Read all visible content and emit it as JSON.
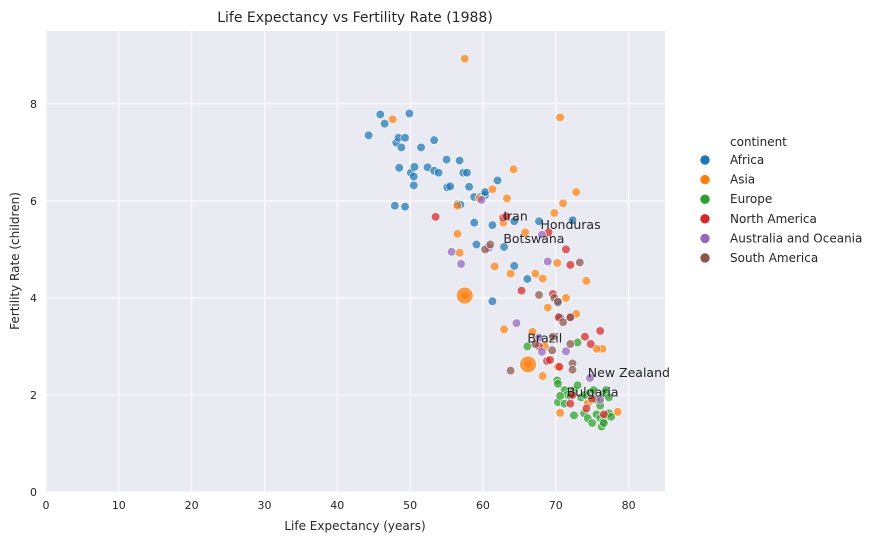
{
  "chart_data": {
    "type": "scatter",
    "title": "Life Expectancy vs Fertility Rate (1988)",
    "xlabel": "Life Expectancy (years)",
    "ylabel": "Fertility Rate (children)",
    "xlim": [
      0,
      85
    ],
    "ylim": [
      0,
      9.5
    ],
    "xticks": [
      0,
      10,
      20,
      30,
      40,
      50,
      60,
      70,
      80
    ],
    "yticks": [
      0,
      2,
      4,
      6,
      8
    ],
    "grid": true,
    "legend": {
      "title": "continent",
      "placement": "right",
      "entries": [
        {
          "name": "Africa",
          "color": "#1f77b4"
        },
        {
          "name": "Asia",
          "color": "#ff7f0e"
        },
        {
          "name": "Europe",
          "color": "#2ca02c"
        },
        {
          "name": "North America",
          "color": "#d62728"
        },
        {
          "name": "Australia and Oceania",
          "color": "#9467bd"
        },
        {
          "name": "South America",
          "color": "#8c564b"
        }
      ]
    },
    "series": [
      {
        "name": "Africa",
        "color": "#1f77b4",
        "points": [
          [
            44.3,
            7.35
          ],
          [
            45.9,
            7.78
          ],
          [
            46.5,
            7.59
          ],
          [
            48.1,
            7.2
          ],
          [
            48.4,
            7.3
          ],
          [
            48.8,
            7.1
          ],
          [
            49.3,
            7.3
          ],
          [
            49.9,
            7.8
          ],
          [
            51.5,
            7.1
          ],
          [
            53.3,
            7.25
          ],
          [
            48.5,
            6.68
          ],
          [
            50.1,
            6.58
          ],
          [
            50.6,
            6.7
          ],
          [
            52.4,
            6.69
          ],
          [
            53.3,
            6.62
          ],
          [
            53.9,
            6.58
          ],
          [
            55.0,
            6.85
          ],
          [
            56.8,
            6.83
          ],
          [
            57.3,
            6.58
          ],
          [
            57.8,
            6.58
          ],
          [
            50.5,
            6.5
          ],
          [
            50.5,
            6.32
          ],
          [
            55.1,
            6.28
          ],
          [
            55.5,
            6.3
          ],
          [
            58.1,
            6.29
          ],
          [
            58.8,
            6.08
          ],
          [
            59.6,
            6.08
          ],
          [
            60.3,
            6.12
          ],
          [
            60.3,
            6.18
          ],
          [
            62.0,
            6.42
          ],
          [
            47.9,
            5.9
          ],
          [
            49.3,
            5.88
          ],
          [
            56.5,
            5.93
          ],
          [
            56.9,
            5.92
          ],
          [
            58.8,
            5.55
          ],
          [
            61.3,
            5.5
          ],
          [
            64.3,
            5.58
          ],
          [
            67.7,
            5.58
          ],
          [
            72.3,
            5.6
          ],
          [
            59.1,
            5.1
          ],
          [
            62.9,
            5.05
          ],
          [
            64.3,
            4.66
          ],
          [
            66.1,
            4.39
          ],
          [
            61.3,
            3.93
          ],
          [
            70.3,
            3.9
          ],
          [
            70.6,
            3.6
          ]
        ]
      },
      {
        "name": "Asia",
        "color": "#ff7f0e",
        "points": [
          [
            57.5,
            8.93
          ],
          [
            47.6,
            7.68
          ],
          [
            70.6,
            7.72
          ],
          [
            64.2,
            6.65
          ],
          [
            72.8,
            6.18
          ],
          [
            61.3,
            6.24
          ],
          [
            63.3,
            6.05
          ],
          [
            71.0,
            5.95
          ],
          [
            56.5,
            5.9
          ],
          [
            59.5,
            6.05
          ],
          [
            69.8,
            5.75
          ],
          [
            62.8,
            5.55
          ],
          [
            65.8,
            5.35
          ],
          [
            56.5,
            5.32
          ],
          [
            56.8,
            4.93
          ],
          [
            61.6,
            4.65
          ],
          [
            63.8,
            4.5
          ],
          [
            67.2,
            4.5
          ],
          [
            68.2,
            4.4
          ],
          [
            70.2,
            4.72
          ],
          [
            74.2,
            4.35
          ],
          [
            71.4,
            4.0
          ],
          [
            68.9,
            3.8
          ],
          [
            57.5,
            4.05
          ],
          [
            72.8,
            3.67
          ],
          [
            62.9,
            3.35
          ],
          [
            66.8,
            3.3
          ],
          [
            68.5,
            3.0
          ],
          [
            76.4,
            2.95
          ],
          [
            66.2,
            2.63
          ],
          [
            68.2,
            2.39
          ],
          [
            70.3,
            2.58
          ],
          [
            75.6,
            2.95
          ],
          [
            78.5,
            1.65
          ],
          [
            70.6,
            1.63
          ],
          [
            74.4,
            1.83
          ],
          [
            76.0,
            1.88
          ]
        ]
      },
      {
        "name": "Europe",
        "color": "#2ca02c",
        "points": [
          [
            66.1,
            3.0
          ],
          [
            70.2,
            2.3
          ],
          [
            70.3,
            2.23
          ],
          [
            71.2,
            2.1
          ],
          [
            71.6,
            2.0
          ],
          [
            72.0,
            1.98
          ],
          [
            72.5,
            2.1
          ],
          [
            73.0,
            2.2
          ],
          [
            73.5,
            1.95
          ],
          [
            74.0,
            2.0
          ],
          [
            74.7,
            2.05
          ],
          [
            75.2,
            2.1
          ],
          [
            75.6,
            1.9
          ],
          [
            76.1,
            1.78
          ],
          [
            76.5,
            2.02
          ],
          [
            76.9,
            2.1
          ],
          [
            77.3,
            1.95
          ],
          [
            70.3,
            1.85
          ],
          [
            71.2,
            1.82
          ],
          [
            72.5,
            1.58
          ],
          [
            73.9,
            1.62
          ],
          [
            74.4,
            1.52
          ],
          [
            75.0,
            1.42
          ],
          [
            75.6,
            1.6
          ],
          [
            76.1,
            1.52
          ],
          [
            76.5,
            1.45
          ],
          [
            76.9,
            1.58
          ],
          [
            77.3,
            1.62
          ],
          [
            77.6,
            1.55
          ],
          [
            76.3,
            1.35
          ],
          [
            76.6,
            1.42
          ],
          [
            70.6,
            1.98
          ],
          [
            73.0,
            3.08
          ]
        ]
      },
      {
        "name": "North America",
        "color": "#d62728",
        "points": [
          [
            53.5,
            5.67
          ],
          [
            62.8,
            5.65
          ],
          [
            63.2,
            5.68
          ],
          [
            69.0,
            5.35
          ],
          [
            71.4,
            5.0
          ],
          [
            72.0,
            4.68
          ],
          [
            65.3,
            4.15
          ],
          [
            69.6,
            4.08
          ],
          [
            70.4,
            3.6
          ],
          [
            72.0,
            3.6
          ],
          [
            76.1,
            3.32
          ],
          [
            74.0,
            3.2
          ],
          [
            74.8,
            3.05
          ],
          [
            67.7,
            3.0
          ],
          [
            68.8,
            2.7
          ],
          [
            69.2,
            2.72
          ],
          [
            70.5,
            2.58
          ],
          [
            72.3,
            2.0
          ],
          [
            75.0,
            1.92
          ],
          [
            76.6,
            1.6
          ],
          [
            72.0,
            1.82
          ],
          [
            74.2,
            1.72
          ]
        ]
      },
      {
        "name": "Australia and Oceania",
        "color": "#9467bd",
        "points": [
          [
            55.7,
            4.95
          ],
          [
            57.0,
            4.7
          ],
          [
            59.8,
            6.02
          ],
          [
            60.8,
            5.03
          ],
          [
            68.1,
            5.3
          ],
          [
            68.9,
            4.75
          ],
          [
            64.6,
            3.48
          ],
          [
            67.7,
            3.18
          ],
          [
            68.1,
            2.89
          ],
          [
            71.4,
            2.9
          ],
          [
            74.7,
            2.35
          ],
          [
            76.1,
            1.9
          ]
        ]
      },
      {
        "name": "South America",
        "color": "#8c564b",
        "points": [
          [
            60.3,
            5.0
          ],
          [
            61.0,
            5.1
          ],
          [
            73.3,
            4.73
          ],
          [
            67.7,
            4.06
          ],
          [
            69.8,
            4.0
          ],
          [
            70.3,
            3.92
          ],
          [
            72.0,
            3.6
          ],
          [
            71.0,
            3.5
          ],
          [
            69.6,
            3.2
          ],
          [
            67.2,
            3.05
          ],
          [
            69.5,
            2.92
          ],
          [
            72.3,
            2.65
          ],
          [
            63.8,
            2.5
          ],
          [
            72.3,
            2.52
          ],
          [
            72.0,
            3.05
          ]
        ]
      }
    ],
    "big_points": [
      {
        "series": "Asia",
        "x": 57.5,
        "y": 4.05,
        "size": "large"
      },
      {
        "series": "Asia",
        "x": 66.2,
        "y": 2.63,
        "size": "large"
      }
    ],
    "annotations": [
      {
        "text": "Iran",
        "x": 62.8,
        "y": 5.6
      },
      {
        "text": "Honduras",
        "x": 67.9,
        "y": 5.42
      },
      {
        "text": "Botswana",
        "x": 62.8,
        "y": 5.13
      },
      {
        "text": "Brazil",
        "x": 66.1,
        "y": 3.08
      },
      {
        "text": "New Zealand",
        "x": 74.4,
        "y": 2.37
      },
      {
        "text": "Bulgaria",
        "x": 71.5,
        "y": 1.97
      }
    ]
  }
}
